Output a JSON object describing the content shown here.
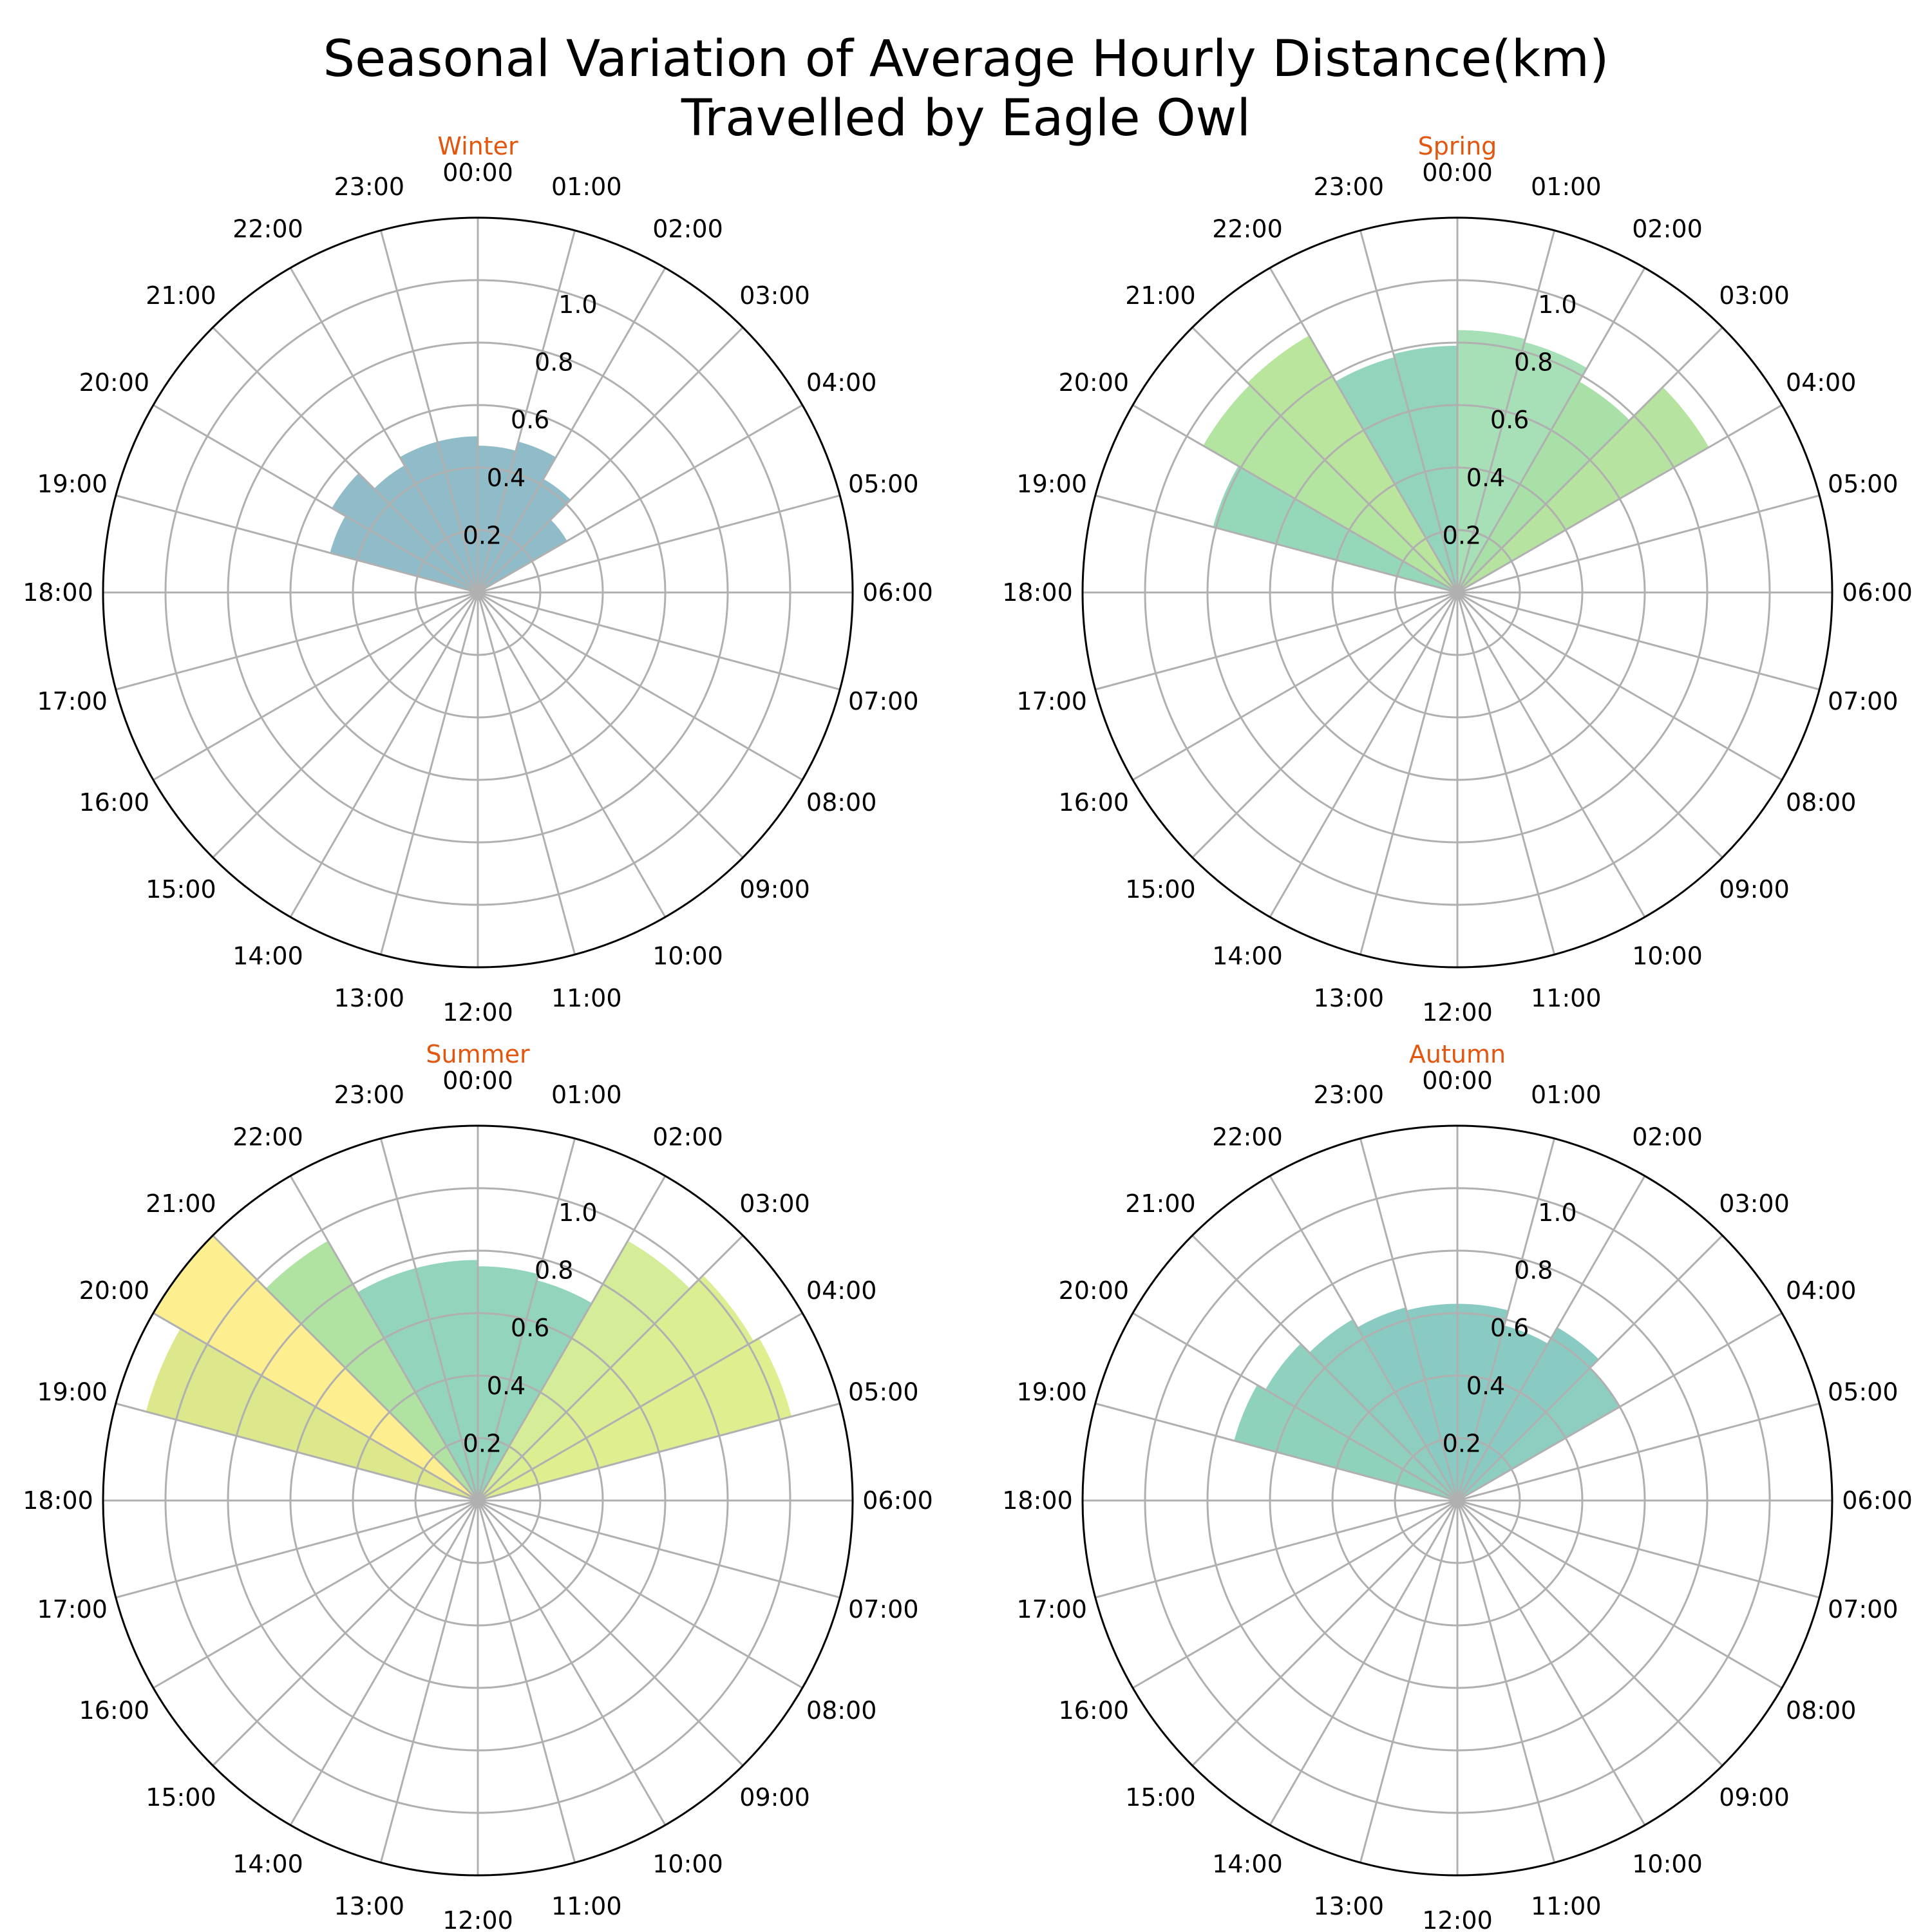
{
  "title_line1": "Seasonal Variation of Average Hourly Distance(km)",
  "title_line2": "Travelled by Eagle Owl",
  "chart_data": [
    {
      "type": "polar-bar",
      "title": "Winter",
      "rlim": [
        0,
        1.2
      ],
      "rticks": [
        0.2,
        0.4,
        0.6,
        0.8,
        1.0
      ],
      "rtick_labels": [
        "0.2",
        "0.4",
        "0.6",
        "0.8",
        "1.0"
      ],
      "grid": true,
      "categories": [
        "00:00",
        "01:00",
        "02:00",
        "03:00",
        "04:00",
        "05:00",
        "06:00",
        "07:00",
        "08:00",
        "09:00",
        "10:00",
        "11:00",
        "12:00",
        "13:00",
        "14:00",
        "15:00",
        "16:00",
        "17:00",
        "18:00",
        "19:00",
        "20:00",
        "21:00",
        "22:00",
        "23:00"
      ],
      "values": [
        0.47,
        0.5,
        0.42,
        0.33,
        0,
        0,
        0,
        0,
        0,
        0,
        0,
        0,
        0,
        0,
        0,
        0,
        0,
        0,
        0,
        0.49,
        0.54,
        0.47,
        0.5,
        0.5
      ],
      "colors": [
        "#8fbcc8",
        "#8fbcc8",
        "#8fbcc8",
        "#8fbcc8",
        "",
        "",
        "",
        "",
        "",
        "",
        "",
        "",
        "",
        "",
        "",
        "",
        "",
        "",
        "",
        "#8fbcc8",
        "#8fbcc8",
        "#8fbcc8",
        "#8fbcc8",
        "#8fbcc8"
      ]
    },
    {
      "type": "polar-bar",
      "title": "Spring",
      "rlim": [
        0,
        1.2
      ],
      "rticks": [
        0.2,
        0.4,
        0.6,
        0.8,
        1.0
      ],
      "rtick_labels": [
        "0.2",
        "0.4",
        "0.6",
        "0.8",
        "1.0"
      ],
      "grid": true,
      "categories": [
        "00:00",
        "01:00",
        "02:00",
        "03:00",
        "04:00",
        "05:00",
        "06:00",
        "07:00",
        "08:00",
        "09:00",
        "10:00",
        "11:00",
        "12:00",
        "13:00",
        "14:00",
        "15:00",
        "16:00",
        "17:00",
        "18:00",
        "19:00",
        "20:00",
        "21:00",
        "22:00",
        "23:00"
      ],
      "values": [
        0.84,
        0.83,
        0.78,
        0.93,
        0,
        0,
        0,
        0,
        0,
        0,
        0,
        0,
        0,
        0,
        0,
        0,
        0,
        0,
        0,
        0.81,
        0.94,
        0.95,
        0.78,
        0.79
      ],
      "colors": [
        "#a7dfb6",
        "#a7dfb6",
        "#a8e0a8",
        "#b6e3a0",
        "",
        "",
        "",
        "",
        "",
        "",
        "",
        "",
        "",
        "",
        "",
        "",
        "",
        "",
        "",
        "#95d8b9",
        "#b3e4a0",
        "#b9e69c",
        "#92d5bc",
        "#92d5bc"
      ]
    },
    {
      "type": "polar-bar",
      "title": "Summer",
      "rlim": [
        0,
        1.2
      ],
      "rticks": [
        0.2,
        0.4,
        0.6,
        0.8,
        1.0
      ],
      "rtick_labels": [
        "0.2",
        "0.4",
        "0.6",
        "0.8",
        "1.0"
      ],
      "grid": true,
      "categories": [
        "00:00",
        "01:00",
        "02:00",
        "03:00",
        "04:00",
        "05:00",
        "06:00",
        "07:00",
        "08:00",
        "09:00",
        "10:00",
        "11:00",
        "12:00",
        "13:00",
        "14:00",
        "15:00",
        "16:00",
        "17:00",
        "18:00",
        "19:00",
        "20:00",
        "21:00",
        "22:00",
        "23:00"
      ],
      "values": [
        0.75,
        0.73,
        0.96,
        1.02,
        1.04,
        0,
        0,
        0,
        0,
        0,
        0,
        0,
        0,
        0,
        0,
        0,
        0,
        0,
        0,
        1.1,
        1.2,
        0.96,
        0.77,
        0.77
      ],
      "colors": [
        "#92d5bc",
        "#92d5bc",
        "#d5ec98",
        "#dcee92",
        "#dfee8f",
        "",
        "",
        "",
        "",
        "",
        "",
        "",
        "",
        "",
        "",
        "",
        "",
        "",
        "",
        "#dde88d",
        "#fdee90",
        "#b0e2a2",
        "#92d5bc",
        "#92d5bc"
      ]
    },
    {
      "type": "polar-bar",
      "title": "Autumn",
      "rlim": [
        0,
        1.2
      ],
      "rticks": [
        0.2,
        0.4,
        0.6,
        0.8,
        1.0
      ],
      "rtick_labels": [
        "0.2",
        "0.4",
        "0.6",
        "0.8",
        "1.0"
      ],
      "grid": true,
      "categories": [
        "00:00",
        "01:00",
        "02:00",
        "03:00",
        "04:00",
        "05:00",
        "06:00",
        "07:00",
        "08:00",
        "09:00",
        "10:00",
        "11:00",
        "12:00",
        "13:00",
        "14:00",
        "15:00",
        "16:00",
        "17:00",
        "18:00",
        "19:00",
        "20:00",
        "21:00",
        "22:00",
        "23:00"
      ],
      "values": [
        0.63,
        0.58,
        0.64,
        0.6,
        0,
        0,
        0,
        0,
        0,
        0,
        0,
        0,
        0,
        0,
        0,
        0,
        0,
        0,
        0,
        0.74,
        0.71,
        0.67,
        0.64,
        0.63
      ],
      "colors": [
        "#89cbc2",
        "#89cbc2",
        "#89cbc2",
        "#8dcec0",
        "",
        "",
        "",
        "",
        "",
        "",
        "",
        "",
        "",
        "",
        "",
        "",
        "",
        "",
        "",
        "#8fd2bb",
        "#8fd0be",
        "#8dcec0",
        "#89cbc2",
        "#89cbc2"
      ]
    }
  ]
}
